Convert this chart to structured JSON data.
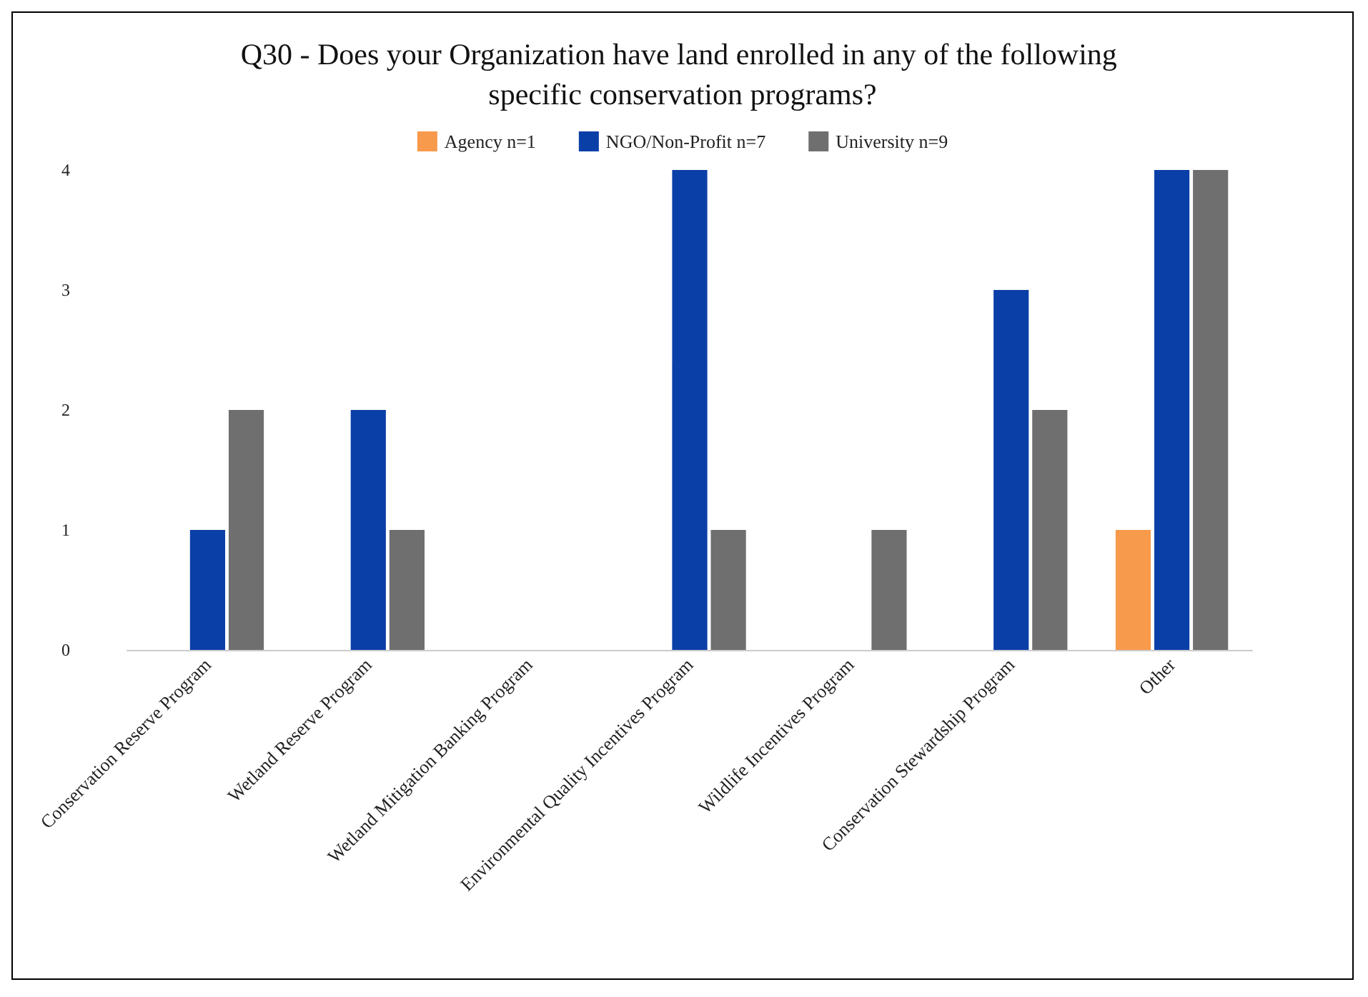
{
  "chart_data": {
    "type": "bar",
    "title": "Q30 - Does your Organization have land enrolled in any of the following specific conservation programs?",
    "categories": [
      "Conservation Reserve Program",
      "Wetland Reserve Program",
      "Wetland Mitigation Banking Program",
      "Environmental Quality Incentives Program",
      "Wildlife Incentives Program",
      "Conservation Stewardship Program",
      "Other"
    ],
    "series": [
      {
        "name": "Agency n=1",
        "color": "#f79a4c",
        "values": [
          0,
          0,
          0,
          0,
          0,
          0,
          1
        ]
      },
      {
        "name": "NGO/Non-Profit n=7",
        "color": "#0b3fa8",
        "values": [
          1,
          2,
          0,
          4,
          0,
          3,
          4
        ]
      },
      {
        "name": "University n=9",
        "color": "#6f6f6f",
        "values": [
          2,
          1,
          0,
          1,
          1,
          2,
          4
        ]
      }
    ],
    "ylim": [
      0,
      4
    ],
    "yticks": [
      0,
      1,
      2,
      3,
      4
    ],
    "grid": false,
    "legend": "top"
  }
}
